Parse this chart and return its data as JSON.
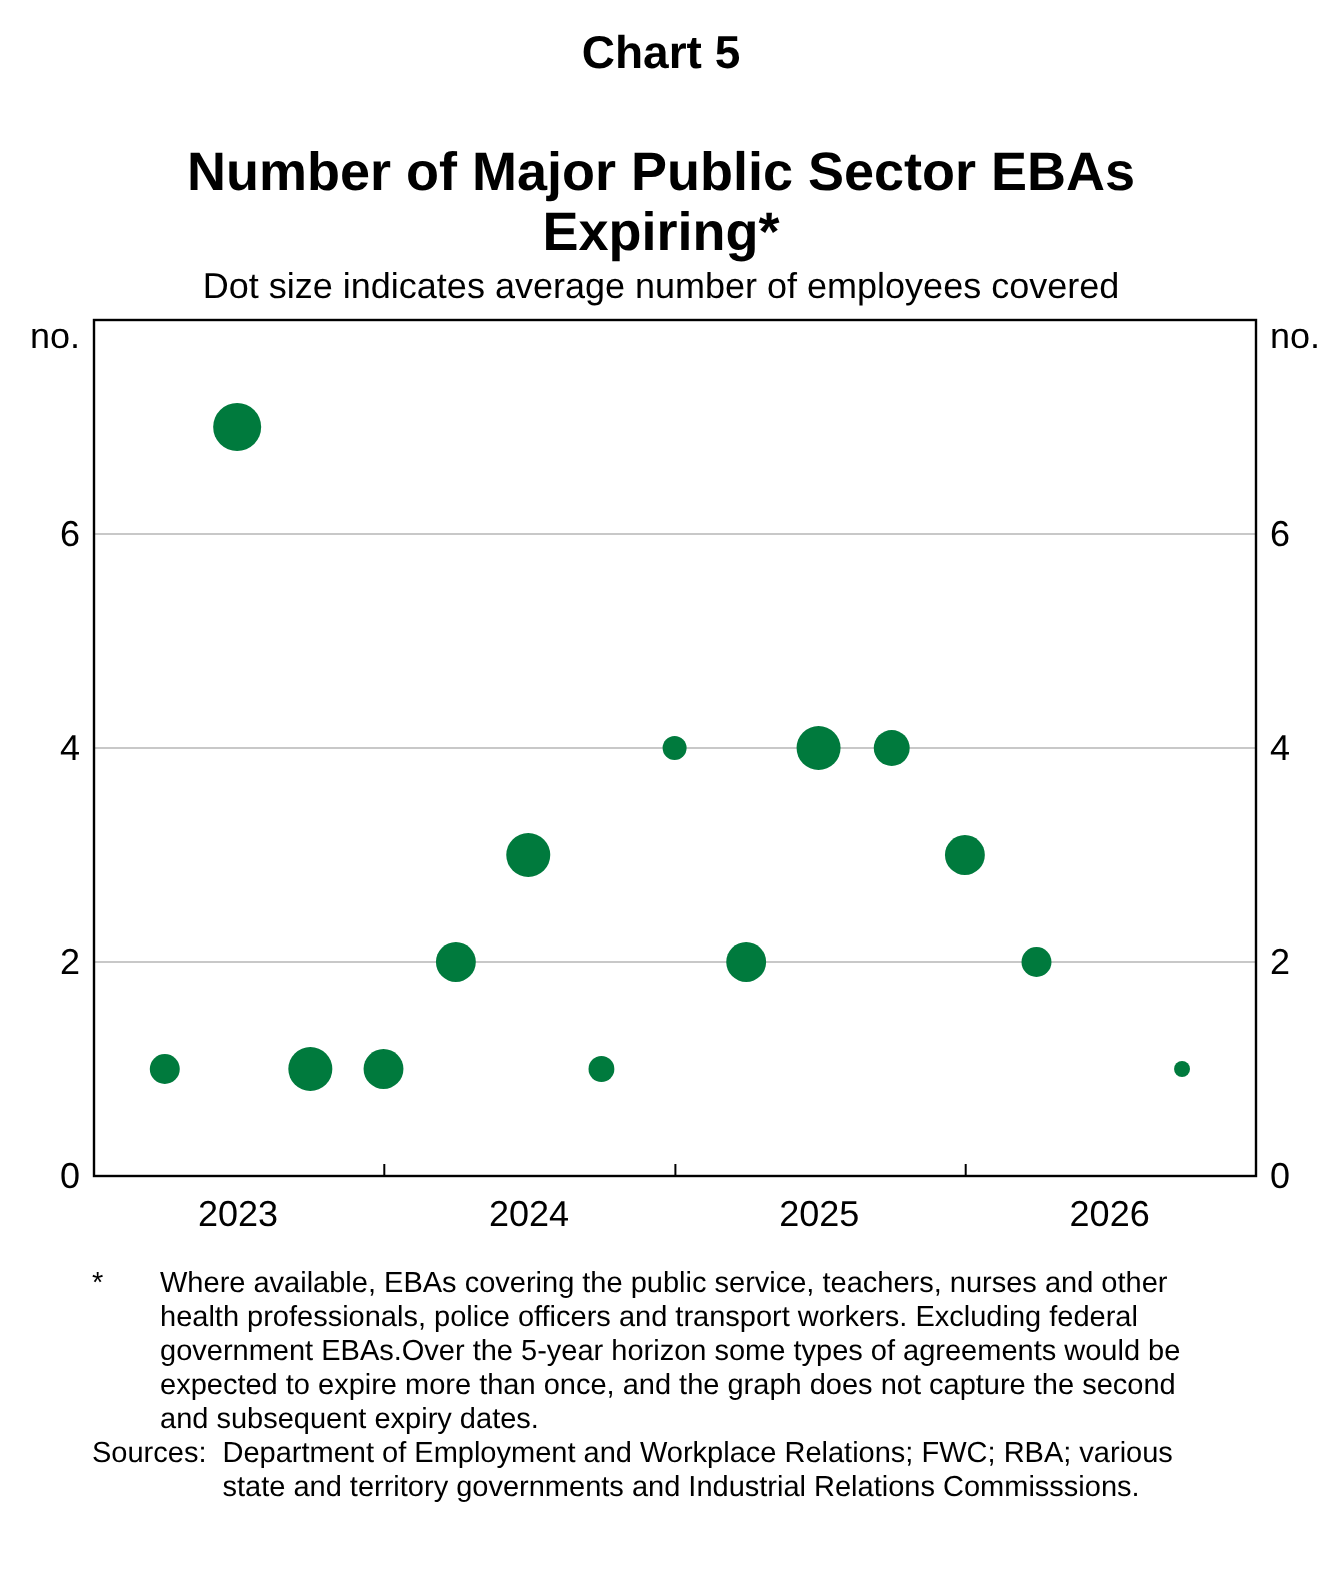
{
  "chart_data": {
    "type": "bubble",
    "title": "Number of Major Public Sector EBAs Expiring*",
    "subtitle": "Dot size indicates average number of employees covered",
    "ylabel": "no.",
    "y2label": "no.",
    "annotations": [
      "Chart 5",
      "*\tWhere available, EBAs covering the public service, teachers, nurses and other health professionals, police officers and transport workers. Excluding federal government EBAs.Over the 5-year horizon some types of agreements would be expected to expire more than once, and the graph does not capture the second and subsequent expiry dates.",
      "Sources:\tDepartment of Employment and Workplace Relations; FWC; RBA; various state and territory governments and Industrial Relations Commisssions."
    ],
    "x": [
      "2023-03-31",
      "2023-06-30",
      "2023-09-30",
      "2023-12-31",
      "2024-03-31",
      "2024-06-30",
      "2024-09-30",
      "2024-12-31",
      "2025-03-31",
      "2025-06-30",
      "2025-09-30",
      "2025-12-31",
      "2026-03-31",
      "2026-09-30"
    ],
    "values": [
      1,
      7,
      1,
      1,
      2,
      3,
      1,
      4,
      2,
      4,
      4,
      3,
      2,
      1
    ],
    "sizes": [
      0.39,
      1,
      0.84,
      0.69,
      0.69,
      0.84,
      0.29,
      0.25,
      0.69,
      0.84,
      0.56,
      0.69,
      0.39,
      0.11
    ],
    "color": "#007a3d",
    "xlim": [
      "2023-01-01",
      "2027-01-01"
    ],
    "xticks": [
      {
        "value": "2023-07-01",
        "label": "2023"
      },
      {
        "value": "2024-01-01",
        "label": null
      },
      {
        "value": "2024-07-01",
        "label": "2024"
      },
      {
        "value": "2025-01-01",
        "label": null
      },
      {
        "value": "2025-07-01",
        "label": "2025"
      },
      {
        "value": "2026-01-01",
        "label": null
      },
      {
        "value": "2026-07-01",
        "label": "2026"
      }
    ],
    "ylim": [
      0,
      8
    ],
    "yticks": [
      0,
      2,
      4,
      6
    ],
    "y2lim": [
      0,
      8
    ],
    "y2ticks": [
      0,
      2,
      4,
      6
    ],
    "grid": "y"
  }
}
